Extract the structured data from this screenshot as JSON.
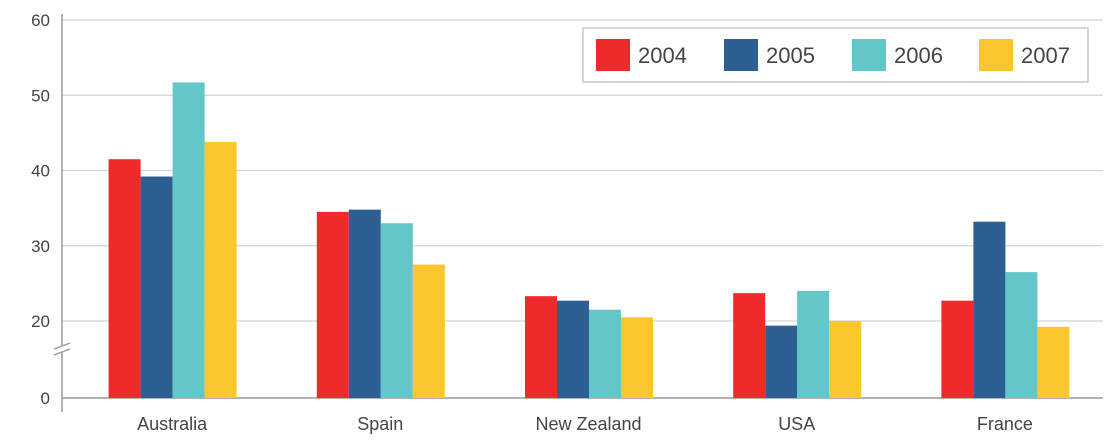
{
  "chart_data": {
    "type": "bar",
    "title": "",
    "xlabel": "",
    "ylabel": "",
    "categories": [
      "Australia",
      "Spain",
      "New Zealand",
      "USA",
      "France"
    ],
    "series": [
      {
        "name": "2004",
        "color": "#ee2a2a",
        "values": [
          41.5,
          34.5,
          23.3,
          23.7,
          22.7
        ]
      },
      {
        "name": "2005",
        "color": "#2e5f92",
        "values": [
          39.2,
          34.8,
          22.7,
          18.8,
          33.2
        ]
      },
      {
        "name": "2006",
        "color": "#63c7c9",
        "values": [
          51.7,
          33.0,
          21.5,
          24.0,
          26.5
        ]
      },
      {
        "name": "2007",
        "color": "#fcc62e",
        "values": [
          43.8,
          27.5,
          20.5,
          20.0,
          18.5
        ]
      }
    ],
    "ylim": [
      0,
      60
    ],
    "yticks": [
      "0",
      "20",
      "30",
      "40",
      "50",
      "60"
    ],
    "grid": true,
    "legend_position": "top-right",
    "axis_break": true
  }
}
